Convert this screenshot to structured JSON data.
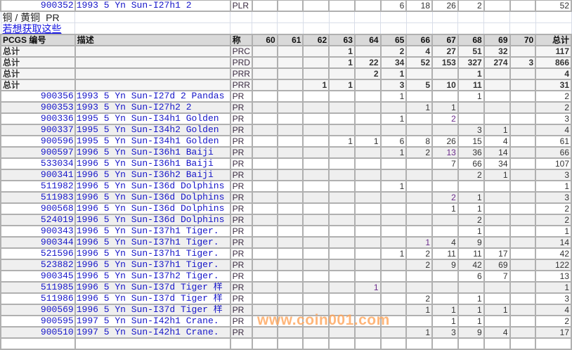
{
  "top_row": {
    "code": "900352",
    "desc": "1993 5 Yn Sun-I27h1 2",
    "grade": "PLR",
    "values": {
      "65": "6",
      "66": "18",
      "67": "26",
      "68": "2"
    },
    "total": "52"
  },
  "section_title": "铜 / 黄铜",
  "section_grade": "PR",
  "link_text": "若想获取这些",
  "header": {
    "code": "PCGS 编号",
    "desc": "描述",
    "grade": "称",
    "grades": [
      "60",
      "61",
      "62",
      "63",
      "64",
      "65",
      "66",
      "67",
      "68",
      "69",
      "70"
    ],
    "total": "总计"
  },
  "totals": [
    {
      "label": "总计",
      "grade": "PRC",
      "values": {
        "63": "1",
        "65": "2",
        "66": "4",
        "67": "27",
        "68": "51",
        "69": "32"
      },
      "total": "117"
    },
    {
      "label": "总计",
      "grade": "PRD",
      "values": {
        "63": "1",
        "64": "22",
        "65": "34",
        "66": "52",
        "67": "153",
        "68": "327",
        "69": "274",
        "70": "3"
      },
      "total": "866"
    },
    {
      "label": "总计",
      "grade": "PRR",
      "values": {
        "64": "2",
        "65": "1",
        "68": "1"
      },
      "total": "4"
    },
    {
      "label": "总计",
      "grade": "PRR",
      "values": {
        "62": "1",
        "63": "1",
        "65": "3",
        "66": "5",
        "67": "10",
        "68": "11"
      },
      "total": "31"
    }
  ],
  "rows": [
    {
      "code": "900356",
      "desc": "1993 5 Yn Sun-I27d 2 Pandas",
      "grade": "PR",
      "values": {
        "65": "1",
        "68": "1"
      },
      "total": "2"
    },
    {
      "code": "900353",
      "desc": "1993 5 Yn Sun-I27h2 2",
      "grade": "PR",
      "values": {
        "66": "1",
        "67": "1"
      },
      "total": "2"
    },
    {
      "code": "900336",
      "desc": "1995 5 Yn Sun-I34h1 Golden",
      "grade": "PR",
      "values": {
        "65": "1",
        "67": "2"
      },
      "total": "3"
    },
    {
      "code": "900337",
      "desc": "1995 5 Yn Sun-I34h2 Golden",
      "grade": "PR",
      "values": {
        "68": "3",
        "69": "1"
      },
      "total": "4"
    },
    {
      "code": "900596",
      "desc": "1995 5 Yn Sun-I34h1 Golden",
      "grade": "PR",
      "values": {
        "63": "1",
        "64": "1",
        "65": "6",
        "66": "8",
        "67": "26",
        "68": "15",
        "69": "4"
      },
      "total": "61"
    },
    {
      "code": "900597",
      "desc": "1996 5 Yn Sun-I36h1 Baiji",
      "grade": "PR",
      "values": {
        "65": "1",
        "66": "2",
        "67": "13",
        "68": "36",
        "69": "14"
      },
      "total": "66"
    },
    {
      "code": "533034",
      "desc": "1996 5 Yn Sun-I36h1 Baiji",
      "grade": "PR",
      "values": {
        "67": "7",
        "68": "66",
        "69": "34"
      },
      "total": "107"
    },
    {
      "code": "900341",
      "desc": "1996 5 Yn Sun-I36h2 Baiji",
      "grade": "PR",
      "values": {
        "68": "2",
        "69": "1"
      },
      "total": "3"
    },
    {
      "code": "511982",
      "desc": "1996 5 Yn Sun-I36d Dolphins",
      "grade": "PR",
      "values": {
        "65": "1"
      },
      "total": "1"
    },
    {
      "code": "511983",
      "desc": "1996 5 Yn Sun-I36d Dolphins",
      "grade": "PR",
      "values": {
        "67": "2",
        "68": "1"
      },
      "total": "3"
    },
    {
      "code": "900568",
      "desc": "1996 5 Yn Sun-I36d Dolphins",
      "grade": "PR",
      "values": {
        "67": "1",
        "68": "1"
      },
      "total": "2"
    },
    {
      "code": "524019",
      "desc": "1996 5 Yn Sun-I36d Dolphins",
      "grade": "PR",
      "values": {
        "68": "2"
      },
      "total": "2"
    },
    {
      "code": "900343",
      "desc": "1996 5 Yn Sun-I37h1 Tiger.",
      "grade": "PR",
      "values": {
        "68": "1"
      },
      "total": "1"
    },
    {
      "code": "900344",
      "desc": "1996 5 Yn Sun-I37h1 Tiger.",
      "grade": "PR",
      "values": {
        "66": "1",
        "67": "4",
        "68": "9"
      },
      "total": "14"
    },
    {
      "code": "521596",
      "desc": "1996 5 Yn Sun-I37h1 Tiger.",
      "grade": "PR",
      "values": {
        "65": "1",
        "66": "2",
        "67": "11",
        "68": "11",
        "69": "17"
      },
      "total": "42"
    },
    {
      "code": "523882",
      "desc": "1996 5 Yn Sun-I37h1 Tiger.",
      "grade": "PR",
      "values": {
        "66": "2",
        "67": "9",
        "68": "42",
        "69": "69"
      },
      "total": "122"
    },
    {
      "code": "900345",
      "desc": "1996 5 Yn Sun-I37h2 Tiger.",
      "grade": "PR",
      "values": {
        "68": "6",
        "69": "7"
      },
      "total": "13"
    },
    {
      "code": "511985",
      "desc": "1996 5 Yn Sun-I37d Tiger 样",
      "grade": "PR",
      "values": {
        "64": "1"
      },
      "total": "1"
    },
    {
      "code": "511986",
      "desc": "1996 5 Yn Sun-I37d Tiger 样",
      "grade": "PR",
      "values": {
        "66": "2",
        "68": "1"
      },
      "total": "3"
    },
    {
      "code": "900569",
      "desc": "1996 5 Yn Sun-I37d Tiger 样",
      "grade": "PR",
      "values": {
        "66": "1",
        "67": "1",
        "68": "1",
        "69": "1"
      },
      "total": "4"
    },
    {
      "code": "900595",
      "desc": "1997 5 Yn Sun-I42h1 Crane.",
      "grade": "PR",
      "values": {
        "67": "1",
        "68": "1"
      },
      "total": "2"
    },
    {
      "code": "900510",
      "desc": "1997 5 Yn Sun-I42h1 Crane.",
      "grade": "PR",
      "values": {
        "66": "1",
        "67": "3",
        "68": "9",
        "69": "4"
      },
      "total": "17"
    }
  ],
  "watermark": "www.coin001.com",
  "colors": {
    "link": "#1515c8",
    "header_bg": "#d9d9d9",
    "alt_row_bg": "#efefef",
    "watermark": "#ffa55a"
  }
}
